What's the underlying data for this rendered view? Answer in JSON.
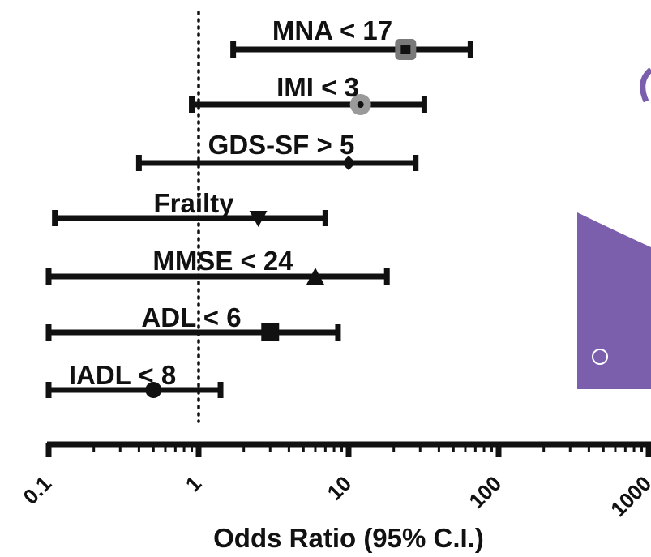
{
  "chart_data": {
    "type": "forest",
    "xlabel": "Odds Ratio (95% C.I.)",
    "x_scale": "log",
    "xlim": [
      0.1,
      1000
    ],
    "x_ticks": [
      "0.1",
      "1",
      "10",
      "100",
      "1000"
    ],
    "reference_line": 1,
    "items": [
      {
        "label": "MNA < 17",
        "or": 24,
        "ci": [
          1.7,
          65
        ],
        "marker": "square"
      },
      {
        "label": "IMI < 3",
        "or": 12,
        "ci": [
          0.9,
          32
        ],
        "marker": "circle"
      },
      {
        "label": "GDS-SF > 5",
        "or": 10,
        "ci": [
          0.4,
          28
        ],
        "marker": "diamond"
      },
      {
        "label": "Frailty",
        "or": 2.5,
        "ci": [
          0.11,
          7
        ],
        "marker": "triangle-down"
      },
      {
        "label": "MMSE < 24",
        "or": 6,
        "ci": [
          0.1,
          18
        ],
        "marker": "triangle-up"
      },
      {
        "label": "ADL < 6",
        "or": 3,
        "ci": [
          0.1,
          8.5
        ],
        "marker": "square"
      },
      {
        "label": "IADL < 8",
        "or": 0.5,
        "ci": [
          0.1,
          1.4
        ],
        "marker": "circle"
      }
    ]
  },
  "colors": {
    "ink": "#111111",
    "marker_gray": "#7a7a7a",
    "purple_panel": "#7b5fad"
  }
}
